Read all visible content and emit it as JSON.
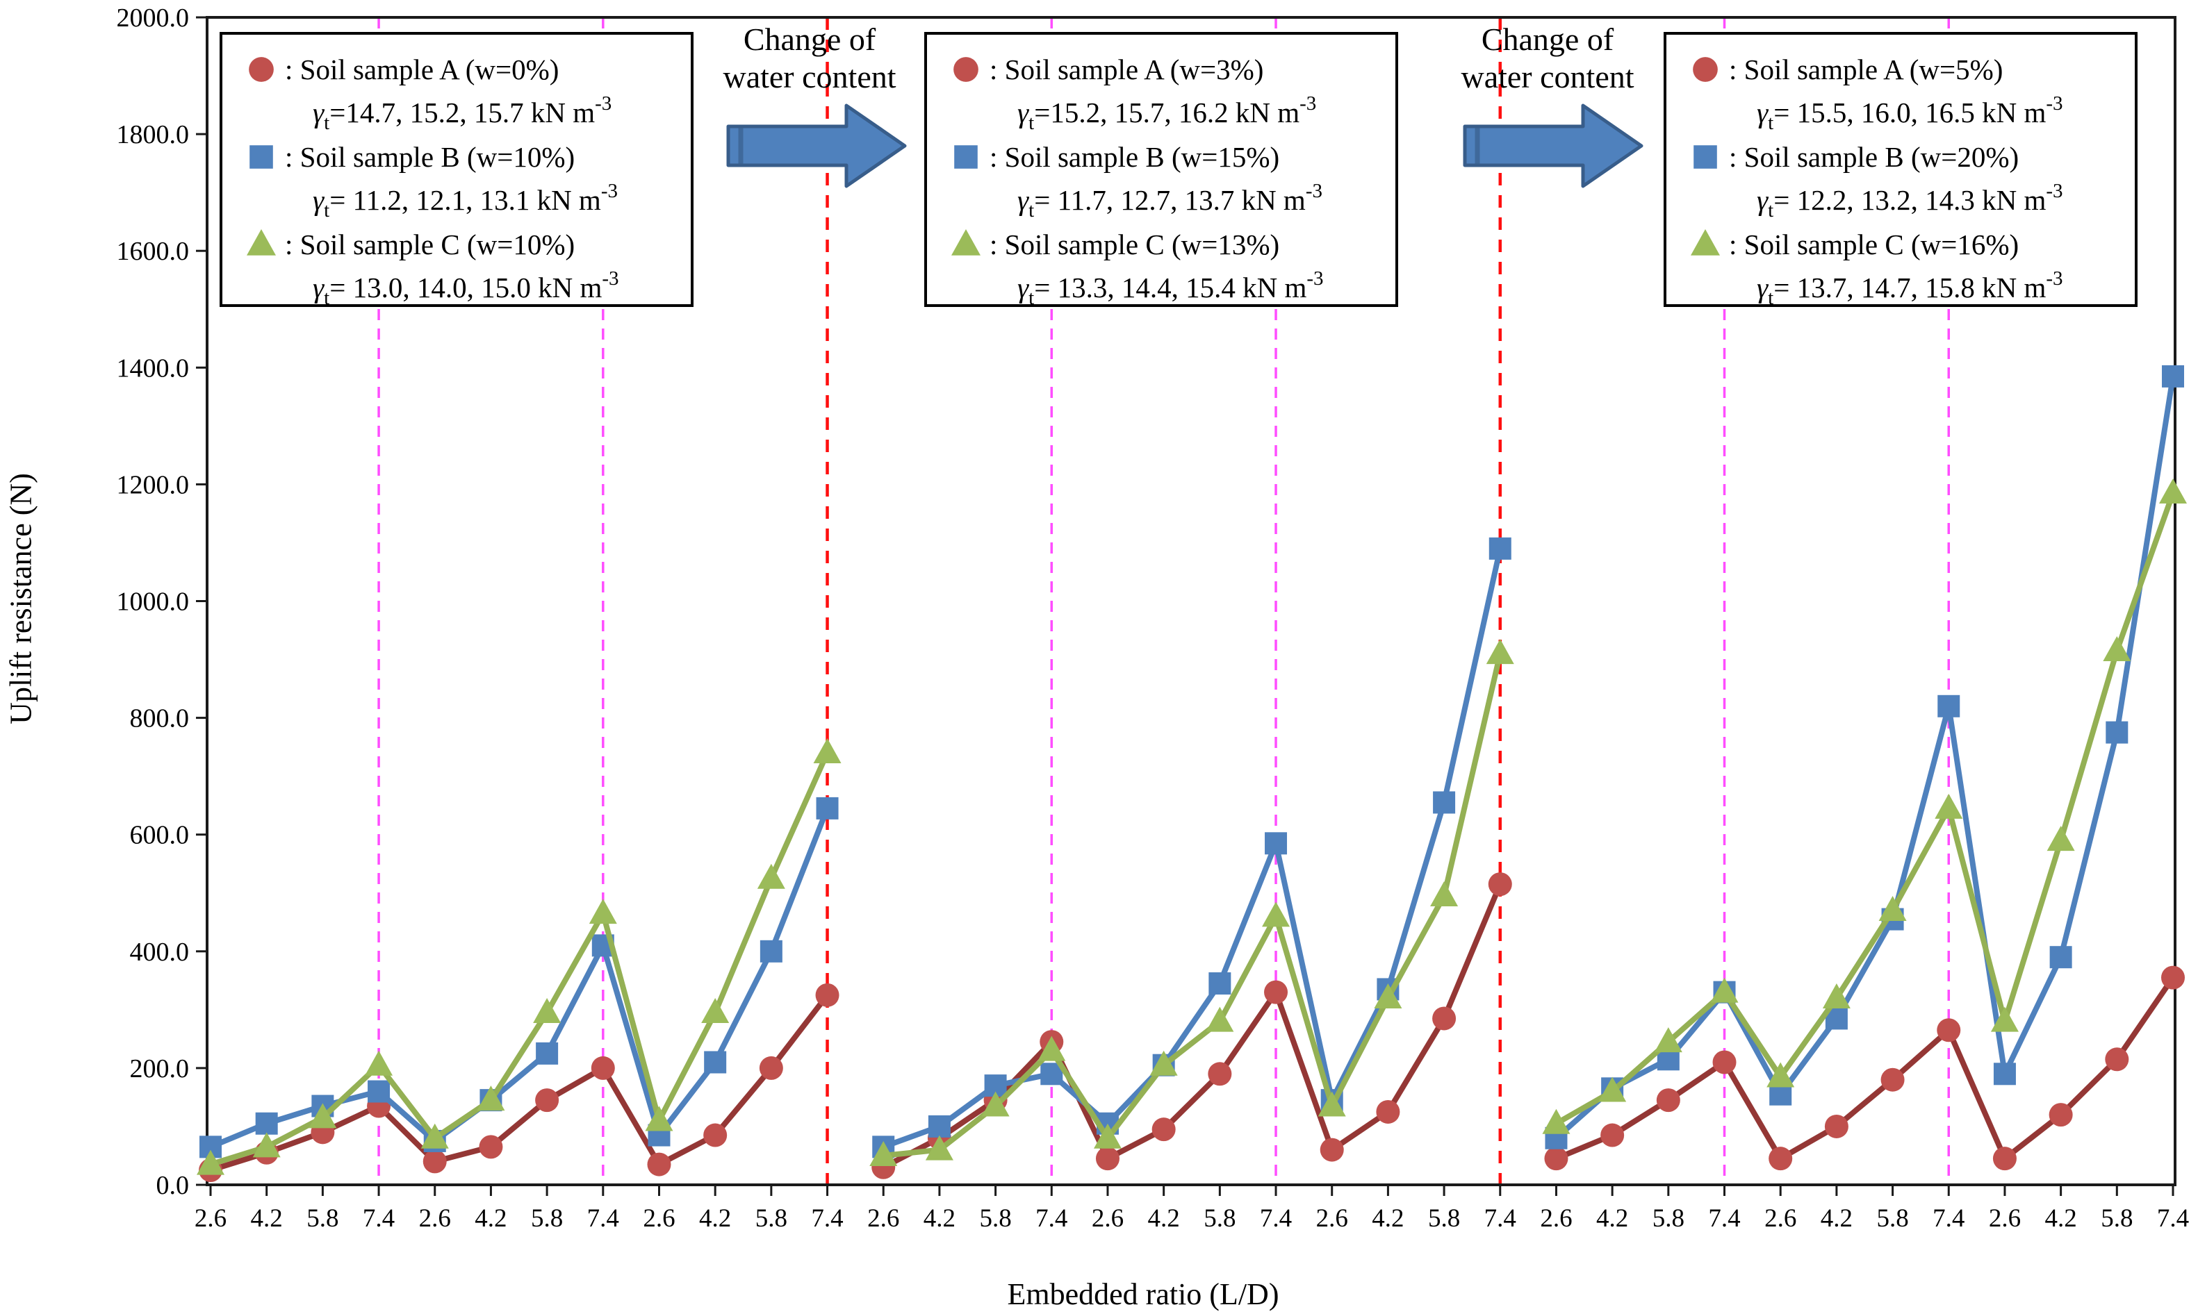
{
  "figure": {
    "background": "#ffffff",
    "xlabel": "Embedded ratio (L/D)",
    "ylabel": "Uplift resistance (N)"
  },
  "annotations": [
    {
      "line1": "Change of",
      "line2": "water content"
    },
    {
      "line1": "Change of",
      "line2": "water content"
    }
  ],
  "chart_data": {
    "type": "line",
    "title": "",
    "xlabel": "Embedded ratio (L/D)",
    "ylabel": "Uplift resistance (N)",
    "ylim": [
      0,
      2000
    ],
    "ytick_step": 200,
    "ytick_labels": [
      "0.0",
      "200.0",
      "400.0",
      "600.0",
      "800.0",
      "1000.0",
      "1200.0",
      "1400.0",
      "1600.0",
      "1800.0",
      "2000.0"
    ],
    "x_tick_labels": [
      "2.6",
      "4.2",
      "5.8",
      "7.4",
      "2.6",
      "4.2",
      "5.8",
      "7.4",
      "2.6",
      "4.2",
      "5.8",
      "7.4",
      "2.6",
      "4.2",
      "5.8",
      "7.4",
      "2.6",
      "4.2",
      "5.8",
      "7.4",
      "2.6",
      "4.2",
      "5.8",
      "7.4",
      "2.6",
      "4.2",
      "5.8",
      "7.4",
      "2.6",
      "4.2",
      "5.8",
      "7.4",
      "2.6",
      "4.2",
      "5.8",
      "7.4"
    ],
    "grid": false,
    "legend_position": "top-inside-per-panel",
    "legend_format": {
      "gamma": "γ",
      "gamma_sub": "t"
    },
    "separator_lines": {
      "magenta_at_index": [
        3,
        7,
        15,
        19,
        27,
        31
      ],
      "red_at_index": [
        11,
        23
      ]
    },
    "colors": {
      "A_line": "#943735",
      "A_marker": "#c0504d",
      "B_line": "#4f81bd",
      "B_marker": "#4f81bd",
      "C_line": "#94b054",
      "C_marker": "#9bbb59",
      "magenta_dash": "#ff4dff",
      "red_dash": "#ff0f0f",
      "arrow_fill": "#4f81bd",
      "arrow_stroke": "#385d8a",
      "axis": "#1a1a1a"
    },
    "panels": [
      {
        "legend": [
          {
            "marker": "circle",
            "color": "#c0504d",
            "label": ": Soil sample A (w=0%)",
            "gamma_values": "=14.7, 15.2, 15.7",
            "unit": "kN m",
            "unit_exp": "-3"
          },
          {
            "marker": "square",
            "color": "#4f81bd",
            "label": ": Soil sample B (w=10%)",
            "gamma_values": "= 11.2, 12.1, 13.1",
            "unit": "kN m",
            "unit_exp": "-3"
          },
          {
            "marker": "triangle",
            "color": "#9bbb59",
            "label": ": Soil sample C (w=10%)",
            "gamma_values": "= 13.0, 14.0, 15.0",
            "unit": "kN m",
            "unit_exp": "-3"
          }
        ],
        "series": [
          {
            "id": "Soil sample A",
            "marker": "circle",
            "values": [
              25,
              55,
              90,
              135,
              40,
              65,
              145,
              200,
              35,
              85,
              200,
              325
            ]
          },
          {
            "id": "Soil sample B",
            "marker": "square",
            "values": [
              65,
              105,
              135,
              160,
              75,
              145,
              225,
              410,
              85,
              210,
              400,
              645
            ]
          },
          {
            "id": "Soil sample C",
            "marker": "triangle",
            "values": [
              35,
              65,
              115,
              205,
              80,
              145,
              295,
              465,
              110,
              295,
              525,
              740
            ]
          }
        ]
      },
      {
        "legend": [
          {
            "marker": "circle",
            "color": "#c0504d",
            "label": ": Soil sample A (w=3%)",
            "gamma_values": "=15.2, 15.7, 16.2",
            "unit": "kN m",
            "unit_exp": "-3"
          },
          {
            "marker": "square",
            "color": "#4f81bd",
            "label": ": Soil sample B (w=15%)",
            "gamma_values": "= 11.7, 12.7, 13.7",
            "unit": "kN m",
            "unit_exp": "-3"
          },
          {
            "marker": "triangle",
            "color": "#9bbb59",
            "label": ": Soil sample C (w=13%)",
            "gamma_values": "= 13.3, 14.4, 15.4",
            "unit": "kN m",
            "unit_exp": "-3"
          }
        ],
        "series": [
          {
            "id": "Soil sample A",
            "marker": "circle",
            "values": [
              30,
              80,
              145,
              245,
              45,
              95,
              190,
              330,
              60,
              125,
              285,
              515
            ]
          },
          {
            "id": "Soil sample B",
            "marker": "square",
            "values": [
              65,
              100,
              170,
              190,
              105,
              205,
              345,
              585,
              145,
              335,
              655,
              1090
            ]
          },
          {
            "id": "Soil sample C",
            "marker": "triangle",
            "values": [
              50,
              60,
              135,
              230,
              80,
              205,
              280,
              460,
              135,
              320,
              495,
              910
            ]
          }
        ]
      },
      {
        "legend": [
          {
            "marker": "circle",
            "color": "#c0504d",
            "label": ": Soil sample A (w=5%)",
            "gamma_values": "= 15.5, 16.0, 16.5",
            "unit": "kN m",
            "unit_exp": "-3"
          },
          {
            "marker": "square",
            "color": "#4f81bd",
            "label": ": Soil sample B (w=20%)",
            "gamma_values": "= 12.2, 13.2, 14.3",
            "unit": "kN m",
            "unit_exp": "-3"
          },
          {
            "marker": "triangle",
            "color": "#9bbb59",
            "label": ": Soil sample C (w=16%)",
            "gamma_values": "= 13.7, 14.7, 15.8",
            "unit": "kN m",
            "unit_exp": "-3"
          }
        ],
        "series": [
          {
            "id": "Soil sample A",
            "marker": "circle",
            "values": [
              45,
              85,
              145,
              210,
              45,
              100,
              180,
              265,
              45,
              120,
              215,
              355
            ]
          },
          {
            "id": "Soil sample B",
            "marker": "square",
            "values": [
              80,
              165,
              215,
              330,
              155,
              285,
              455,
              820,
              190,
              390,
              775,
              1385
            ]
          },
          {
            "id": "Soil sample C",
            "marker": "triangle",
            "values": [
              105,
              160,
              245,
              330,
              185,
              320,
              470,
              645,
              280,
              590,
              915,
              1185
            ]
          }
        ]
      }
    ]
  }
}
